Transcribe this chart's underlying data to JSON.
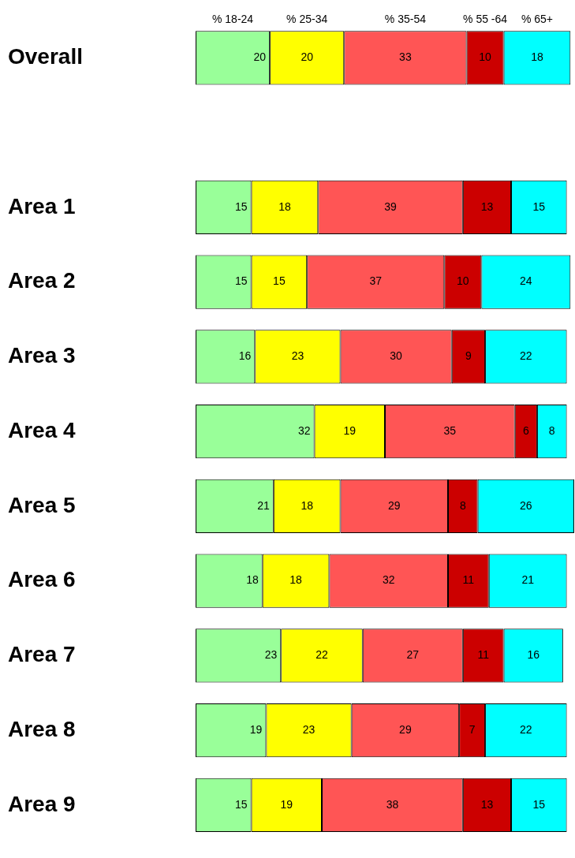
{
  "chart_data": {
    "type": "bar",
    "orientation": "horizontal",
    "stacked": true,
    "data_labels": true,
    "categories": [
      "Overall",
      null,
      "Area 1",
      "Area 2",
      "Area 3",
      "Area 4",
      "Area 5",
      "Area 6",
      "Area 7",
      "Area 8",
      "Area 9"
    ],
    "series": [
      {
        "name": "% 18-24",
        "color": "#99ff99",
        "values": [
          20,
          null,
          15,
          15,
          16,
          32,
          21,
          18,
          23,
          19,
          15
        ]
      },
      {
        "name": "% 25-34",
        "color": "#ffff00",
        "values": [
          20,
          null,
          18,
          15,
          23,
          19,
          18,
          18,
          22,
          23,
          19
        ]
      },
      {
        "name": "% 35-54",
        "color": "#ff5555",
        "values": [
          33,
          null,
          39,
          37,
          30,
          35,
          29,
          32,
          27,
          29,
          38
        ]
      },
      {
        "name": "% 55 -64",
        "color": "#cc0000",
        "values": [
          10,
          null,
          13,
          10,
          9,
          6,
          8,
          11,
          11,
          7,
          13
        ]
      },
      {
        "name": "% 65+",
        "color": "#00ffff",
        "values": [
          18,
          null,
          15,
          24,
          22,
          8,
          26,
          21,
          16,
          22,
          15
        ]
      }
    ]
  }
}
